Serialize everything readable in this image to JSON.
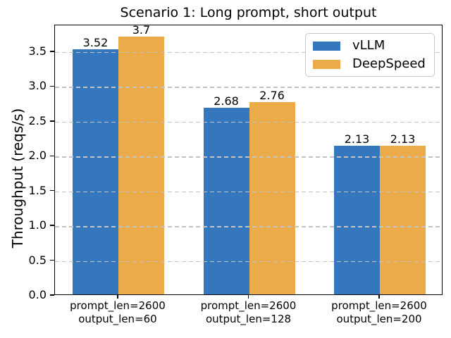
{
  "chart_data": {
    "type": "bar",
    "title": "Scenario 1: Long prompt, short output",
    "xlabel": "",
    "ylabel": "Throughput (reqs/s)",
    "categories": [
      "prompt_len=2600\noutput_len=60",
      "prompt_len=2600\noutput_len=128",
      "prompt_len=2600\noutput_len=200"
    ],
    "series": [
      {
        "name": "vLLM",
        "color": "#3577bd",
        "values": [
          3.52,
          2.68,
          2.13
        ],
        "value_labels": [
          "3.52",
          "2.68",
          "2.13"
        ]
      },
      {
        "name": "DeepSpeed",
        "color": "#ecab49",
        "values": [
          3.7,
          2.76,
          2.13
        ],
        "value_labels": [
          "3.7",
          "2.76",
          "2.13"
        ]
      }
    ],
    "ylim": [
      0,
      3.885
    ],
    "yticks": [
      0.0,
      0.5,
      1.0,
      1.5,
      2.0,
      2.5,
      3.0,
      3.5
    ],
    "ytick_labels": [
      "0.0",
      "0.5",
      "1.0",
      "1.5",
      "2.0",
      "2.5",
      "3.0",
      "3.5"
    ],
    "grid": {
      "axis": "y",
      "style": "dashed",
      "color": "#c3c3c3",
      "over_bars": true
    },
    "legend": {
      "position": "upper right",
      "entries": [
        "vLLM",
        "DeepSpeed"
      ]
    },
    "colors": {
      "spine": "#000000",
      "text": "#000000",
      "background": "#ffffff"
    }
  }
}
